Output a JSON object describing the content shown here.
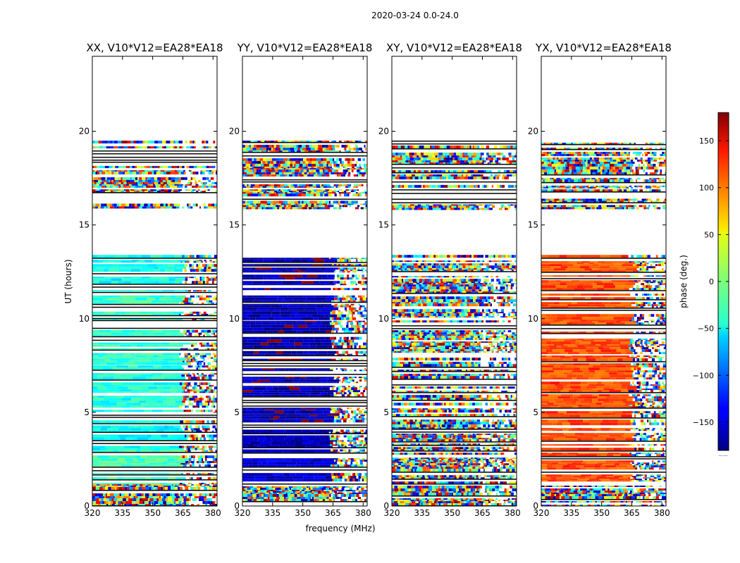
{
  "figure": {
    "suptitle": "2020-03-24 0.0-24.0",
    "shared_xlabel": "frequency (MHz)",
    "shared_ylabel": "UT (hours)"
  },
  "chart_data": [
    {
      "type": "heatmap",
      "title": "XX, V10*V12=EA28*EA18",
      "xlabel": "frequency (MHz)",
      "ylabel": "UT (hours)",
      "xlim": [
        320,
        382
      ],
      "ylim": [
        0,
        24
      ],
      "xticks": [
        320,
        335,
        350,
        365,
        380
      ],
      "yticks": [
        0,
        5,
        10,
        15,
        20
      ],
      "bands_h": [
        {
          "from": 0.0,
          "to": 1.2,
          "base": "noise"
        },
        {
          "from": 1.2,
          "to": 3.0,
          "base": -20
        },
        {
          "from": 3.0,
          "to": 4.3,
          "base": -45
        },
        {
          "from": 4.3,
          "to": 7.5,
          "base": -35
        },
        {
          "from": 7.6,
          "to": 10.0,
          "base": -30
        },
        {
          "from": 10.0,
          "to": 11.5,
          "base": -25
        },
        {
          "from": 11.5,
          "to": 13.4,
          "base": -40
        },
        {
          "from": 15.9,
          "to": 16.4,
          "base": "noise"
        },
        {
          "from": 16.6,
          "to": 16.9,
          "base": "noise"
        },
        {
          "from": 17.0,
          "to": 19.5,
          "base": "noise"
        }
      ],
      "rfi_start_mhz": 363
    },
    {
      "type": "heatmap",
      "title": "YY, V10*V12=EA28*EA18",
      "xlabel": "frequency (MHz)",
      "ylabel": "UT (hours)",
      "xlim": [
        320,
        382
      ],
      "ylim": [
        0,
        24
      ],
      "xticks": [
        320,
        335,
        350,
        365,
        380
      ],
      "yticks": [
        0,
        5,
        10,
        15,
        20
      ],
      "bands_h": [
        {
          "from": 0.0,
          "to": 1.2,
          "base": "noise"
        },
        {
          "from": 1.2,
          "to": 3.0,
          "base": -150
        },
        {
          "from": 3.0,
          "to": 4.3,
          "base": -160
        },
        {
          "from": 4.3,
          "to": 7.5,
          "base": -165
        },
        {
          "from": 7.6,
          "to": 10.0,
          "base": -165
        },
        {
          "from": 10.0,
          "to": 11.5,
          "base": -160
        },
        {
          "from": 11.5,
          "to": 13.4,
          "base": -165
        },
        {
          "from": 15.9,
          "to": 16.4,
          "base": "noise"
        },
        {
          "from": 16.6,
          "to": 16.9,
          "base": "noise"
        },
        {
          "from": 17.0,
          "to": 19.5,
          "base": "noise"
        }
      ],
      "rfi_start_mhz": 363
    },
    {
      "type": "heatmap",
      "title": "XY, V10*V12=EA28*EA18",
      "xlabel": "frequency (MHz)",
      "ylabel": "UT (hours)",
      "xlim": [
        320,
        382
      ],
      "ylim": [
        0,
        24
      ],
      "xticks": [
        320,
        335,
        350,
        365,
        380
      ],
      "yticks": [
        0,
        5,
        10,
        15,
        20
      ],
      "bands_h": [
        {
          "from": 0.0,
          "to": 1.2,
          "base": "noise"
        },
        {
          "from": 1.2,
          "to": 13.4,
          "base": "noise"
        },
        {
          "from": 15.9,
          "to": 16.4,
          "base": "noise"
        },
        {
          "from": 16.6,
          "to": 16.9,
          "base": "noise"
        },
        {
          "from": 17.0,
          "to": 19.5,
          "base": "noise"
        }
      ],
      "rfi_start_mhz": 363
    },
    {
      "type": "heatmap",
      "title": "YX, V10*V12=EA28*EA18",
      "xlabel": "frequency (MHz)",
      "ylabel": "UT (hours)",
      "xlim": [
        320,
        382
      ],
      "ylim": [
        0,
        24
      ],
      "xticks": [
        320,
        335,
        350,
        365,
        380
      ],
      "yticks": [
        0,
        5,
        10,
        15,
        20
      ],
      "bands_h": [
        {
          "from": 0.0,
          "to": 1.2,
          "base": "noise"
        },
        {
          "from": 1.2,
          "to": 13.4,
          "base": 110
        },
        {
          "from": 15.9,
          "to": 16.4,
          "base": "noise"
        },
        {
          "from": 16.6,
          "to": 16.9,
          "base": "noise"
        },
        {
          "from": 17.0,
          "to": 19.5,
          "base": "noise"
        }
      ],
      "rfi_start_mhz": 363
    }
  ],
  "colorbar": {
    "label": "phase (deg.)",
    "colormap": "jet",
    "range": [
      -180,
      180
    ],
    "ticks": [
      150,
      100,
      50,
      0,
      -50,
      -100,
      -150
    ],
    "tick_labels": [
      "150",
      "100",
      "50",
      "0",
      "−50",
      "−100",
      "−150"
    ],
    "footer": "......"
  }
}
